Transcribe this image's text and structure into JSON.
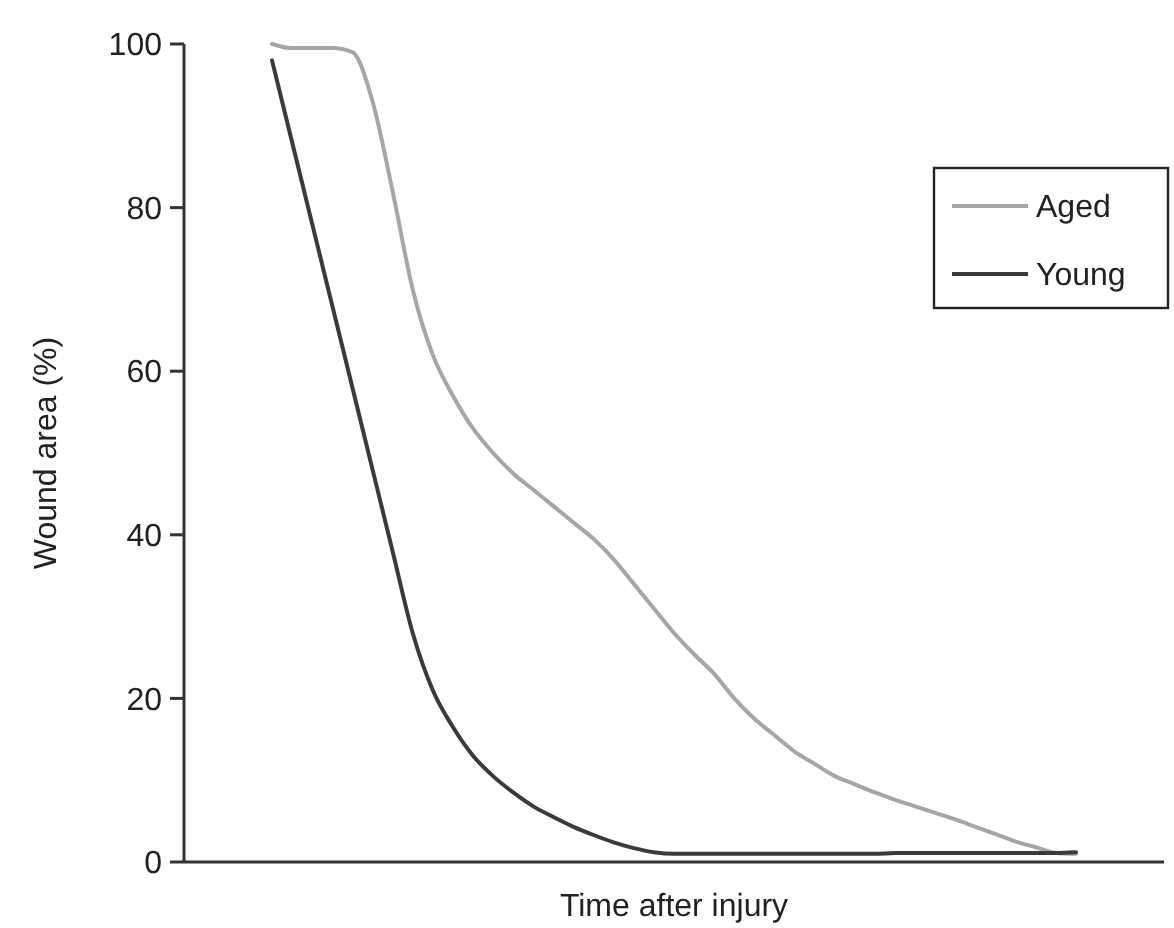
{
  "chart_data": {
    "type": "line",
    "xlabel": "Time after injury",
    "ylabel": "Wound area (%)",
    "categories": [
      null,
      null,
      null,
      null,
      null,
      null,
      null,
      null,
      null,
      null,
      null,
      null,
      null,
      null,
      null,
      null,
      null,
      null,
      null,
      null,
      null,
      null,
      null,
      null,
      null,
      null,
      null,
      null,
      null,
      null,
      null,
      null,
      null,
      null,
      null,
      null,
      null,
      null,
      null,
      null,
      null
    ],
    "series": [
      {
        "name": "Aged",
        "color": "#a6a6a6",
        "values": [
          100,
          99.5,
          99.5,
          99.5,
          99,
          93,
          82,
          70,
          62,
          57,
          53,
          50,
          47.5,
          45.5,
          43.5,
          41.5,
          39.5,
          37,
          34,
          31,
          28,
          25.4,
          23,
          20,
          17.5,
          15.5,
          13.5,
          12,
          10.5,
          9.5,
          8.5,
          7.6,
          6.8,
          6,
          5.2,
          4.3,
          3.4,
          2.5,
          1.8,
          1.1,
          1
        ]
      },
      {
        "name": "Young",
        "color": "#3a3a3a",
        "values": [
          98,
          88,
          78,
          68,
          58,
          48,
          38,
          28,
          21,
          16.5,
          13,
          10.5,
          8.5,
          6.8,
          5.5,
          4.3,
          3.3,
          2.4,
          1.7,
          1.2,
          1,
          1,
          1,
          1,
          1,
          1,
          1,
          1,
          1,
          1,
          1,
          1.1,
          1.1,
          1.1,
          1.1,
          1.1,
          1.1,
          1.1,
          1.1,
          1.1,
          1.2
        ]
      }
    ],
    "ylim": [
      0,
      100
    ],
    "yticks": [
      0,
      20,
      40,
      60,
      80,
      100
    ],
    "legend": "top right",
    "grid": false,
    "marker": "none",
    "line_style": "solid"
  }
}
